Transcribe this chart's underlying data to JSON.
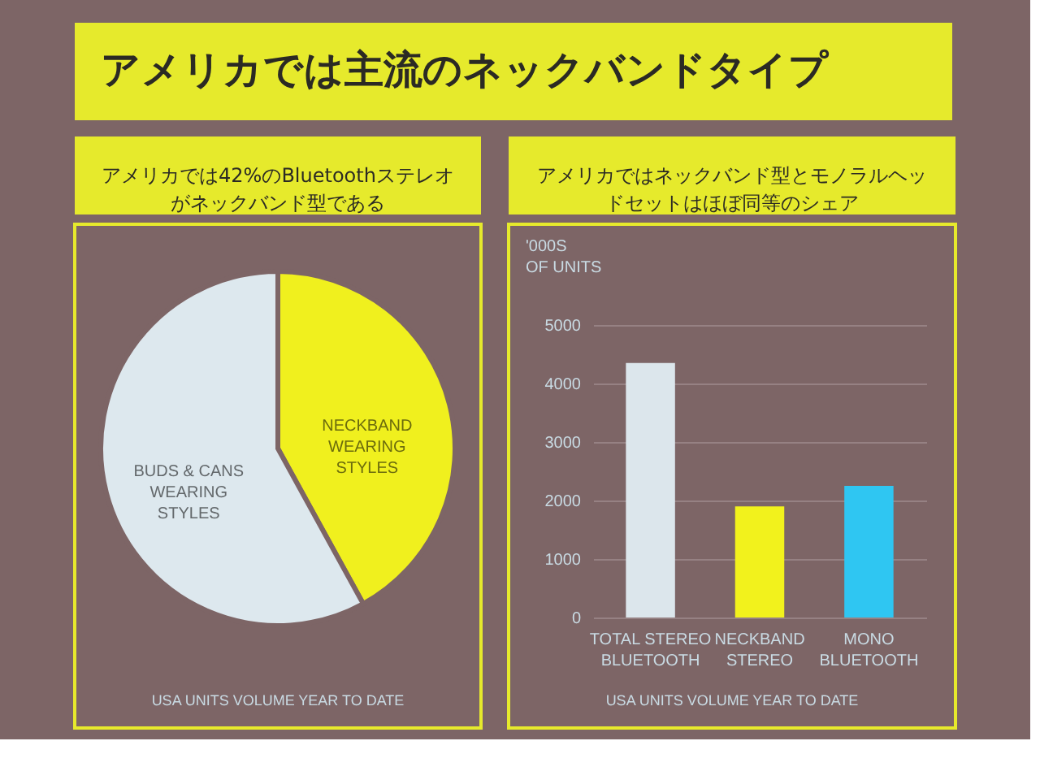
{
  "chart_data": [
    {
      "type": "other",
      "title": "アメリカでは主流のネックバンドタイプ"
    },
    {
      "type": "pie",
      "title": "アメリカでは42%のBluetoothステレオがネックバンド型である",
      "categories": [
        "NECKBAND\nWEARING\nSTYLES",
        "BUDS & CANS\nWEARING\nSTYLES"
      ],
      "values": [
        42,
        58
      ],
      "colors": [
        "#f0f01e",
        "#dde8ee"
      ],
      "annotations": [
        "USA UNITS VOLUME YEAR TO DATE"
      ]
    },
    {
      "type": "bar",
      "title": "アメリカではネックバンド型とモノラルヘッドセットはほぼ同等のシェア",
      "ylabel": "'000S\nOF UNITS",
      "categories": [
        "TOTAL STEREO\nBLUETOOTH",
        "NECKBAND\nSTEREO",
        "MONO\nBLUETOOTH"
      ],
      "values": [
        4350,
        1900,
        2250
      ],
      "colors": [
        "#dce6ec",
        "#f2f21c",
        "#2fc6f2"
      ],
      "ylim": [
        0,
        5000
      ],
      "yticks": [
        0,
        1000,
        2000,
        3000,
        4000,
        5000
      ],
      "grid": "y",
      "annotations": [
        "USA UNITS VOLUME YEAR TO DATE"
      ]
    }
  ]
}
